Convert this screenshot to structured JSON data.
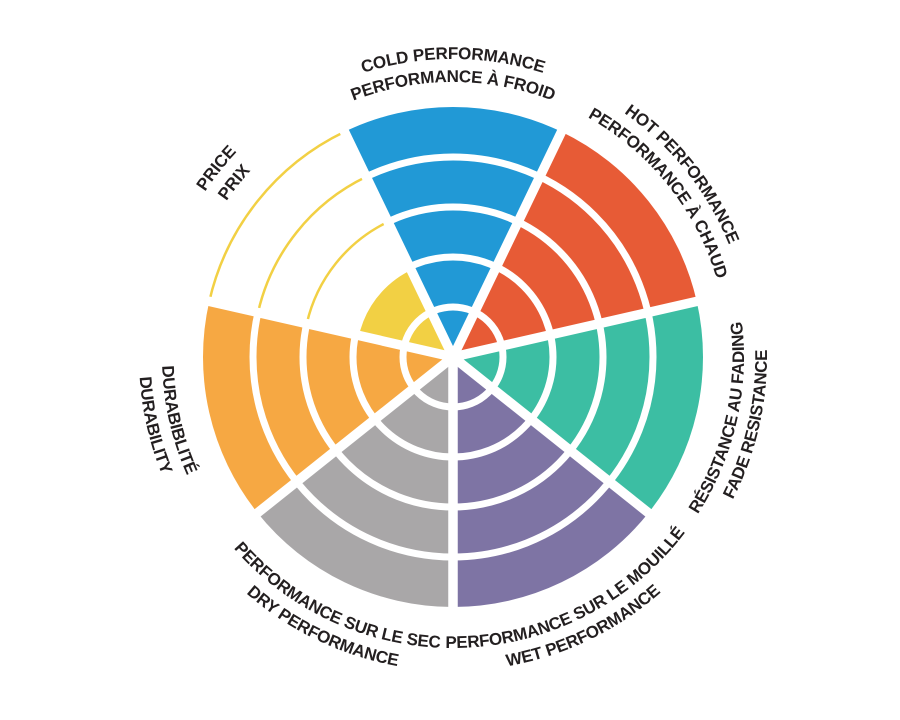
{
  "page": {
    "background": "#FFFFFF"
  },
  "chart_data": {
    "type": "polar-rating-wheel",
    "ring_count": 5,
    "max_rating": 5,
    "separator_color": "#FFFFFF",
    "text_color": "#231F20",
    "legend_position": "labels-around-rim",
    "sectors": [
      {
        "id": "cold-performance",
        "label_line1": "COLD PERFORMANCE",
        "label_line2": "PERFORMANCE À FROID",
        "value": 5,
        "color": "#2199D6"
      },
      {
        "id": "hot-performance",
        "label_line1": "HOT PERFORMANCE",
        "label_line2": "PERFORMANCE À CHAUD",
        "value": 5,
        "color": "#E75B36"
      },
      {
        "id": "fade-resistance",
        "label_line1": "RÉSISTANCE AU FADING",
        "label_line2": "FADE RESISTANCE",
        "value": 5,
        "color": "#3CBEA3"
      },
      {
        "id": "wet-performance",
        "label_line1": "PERFORMANCE SUR LE MOUILLÉ",
        "label_line2": "WET PERFORMANCE",
        "value": 5,
        "color": "#7E74A4"
      },
      {
        "id": "dry-performance",
        "label_line1": "PERFORMANCE SUR LE SEC",
        "label_line2": "DRY PERFORMANCE",
        "value": 5,
        "color": "#A9A7A8"
      },
      {
        "id": "durability",
        "label_line1": "DURABIBLITÉ",
        "label_line2": "DURABILITY",
        "value": 5,
        "color": "#F6A843"
      },
      {
        "id": "price",
        "label_line1": "PRICE",
        "label_line2": "PRIX",
        "value": 2,
        "color": "#F2D044"
      }
    ]
  }
}
